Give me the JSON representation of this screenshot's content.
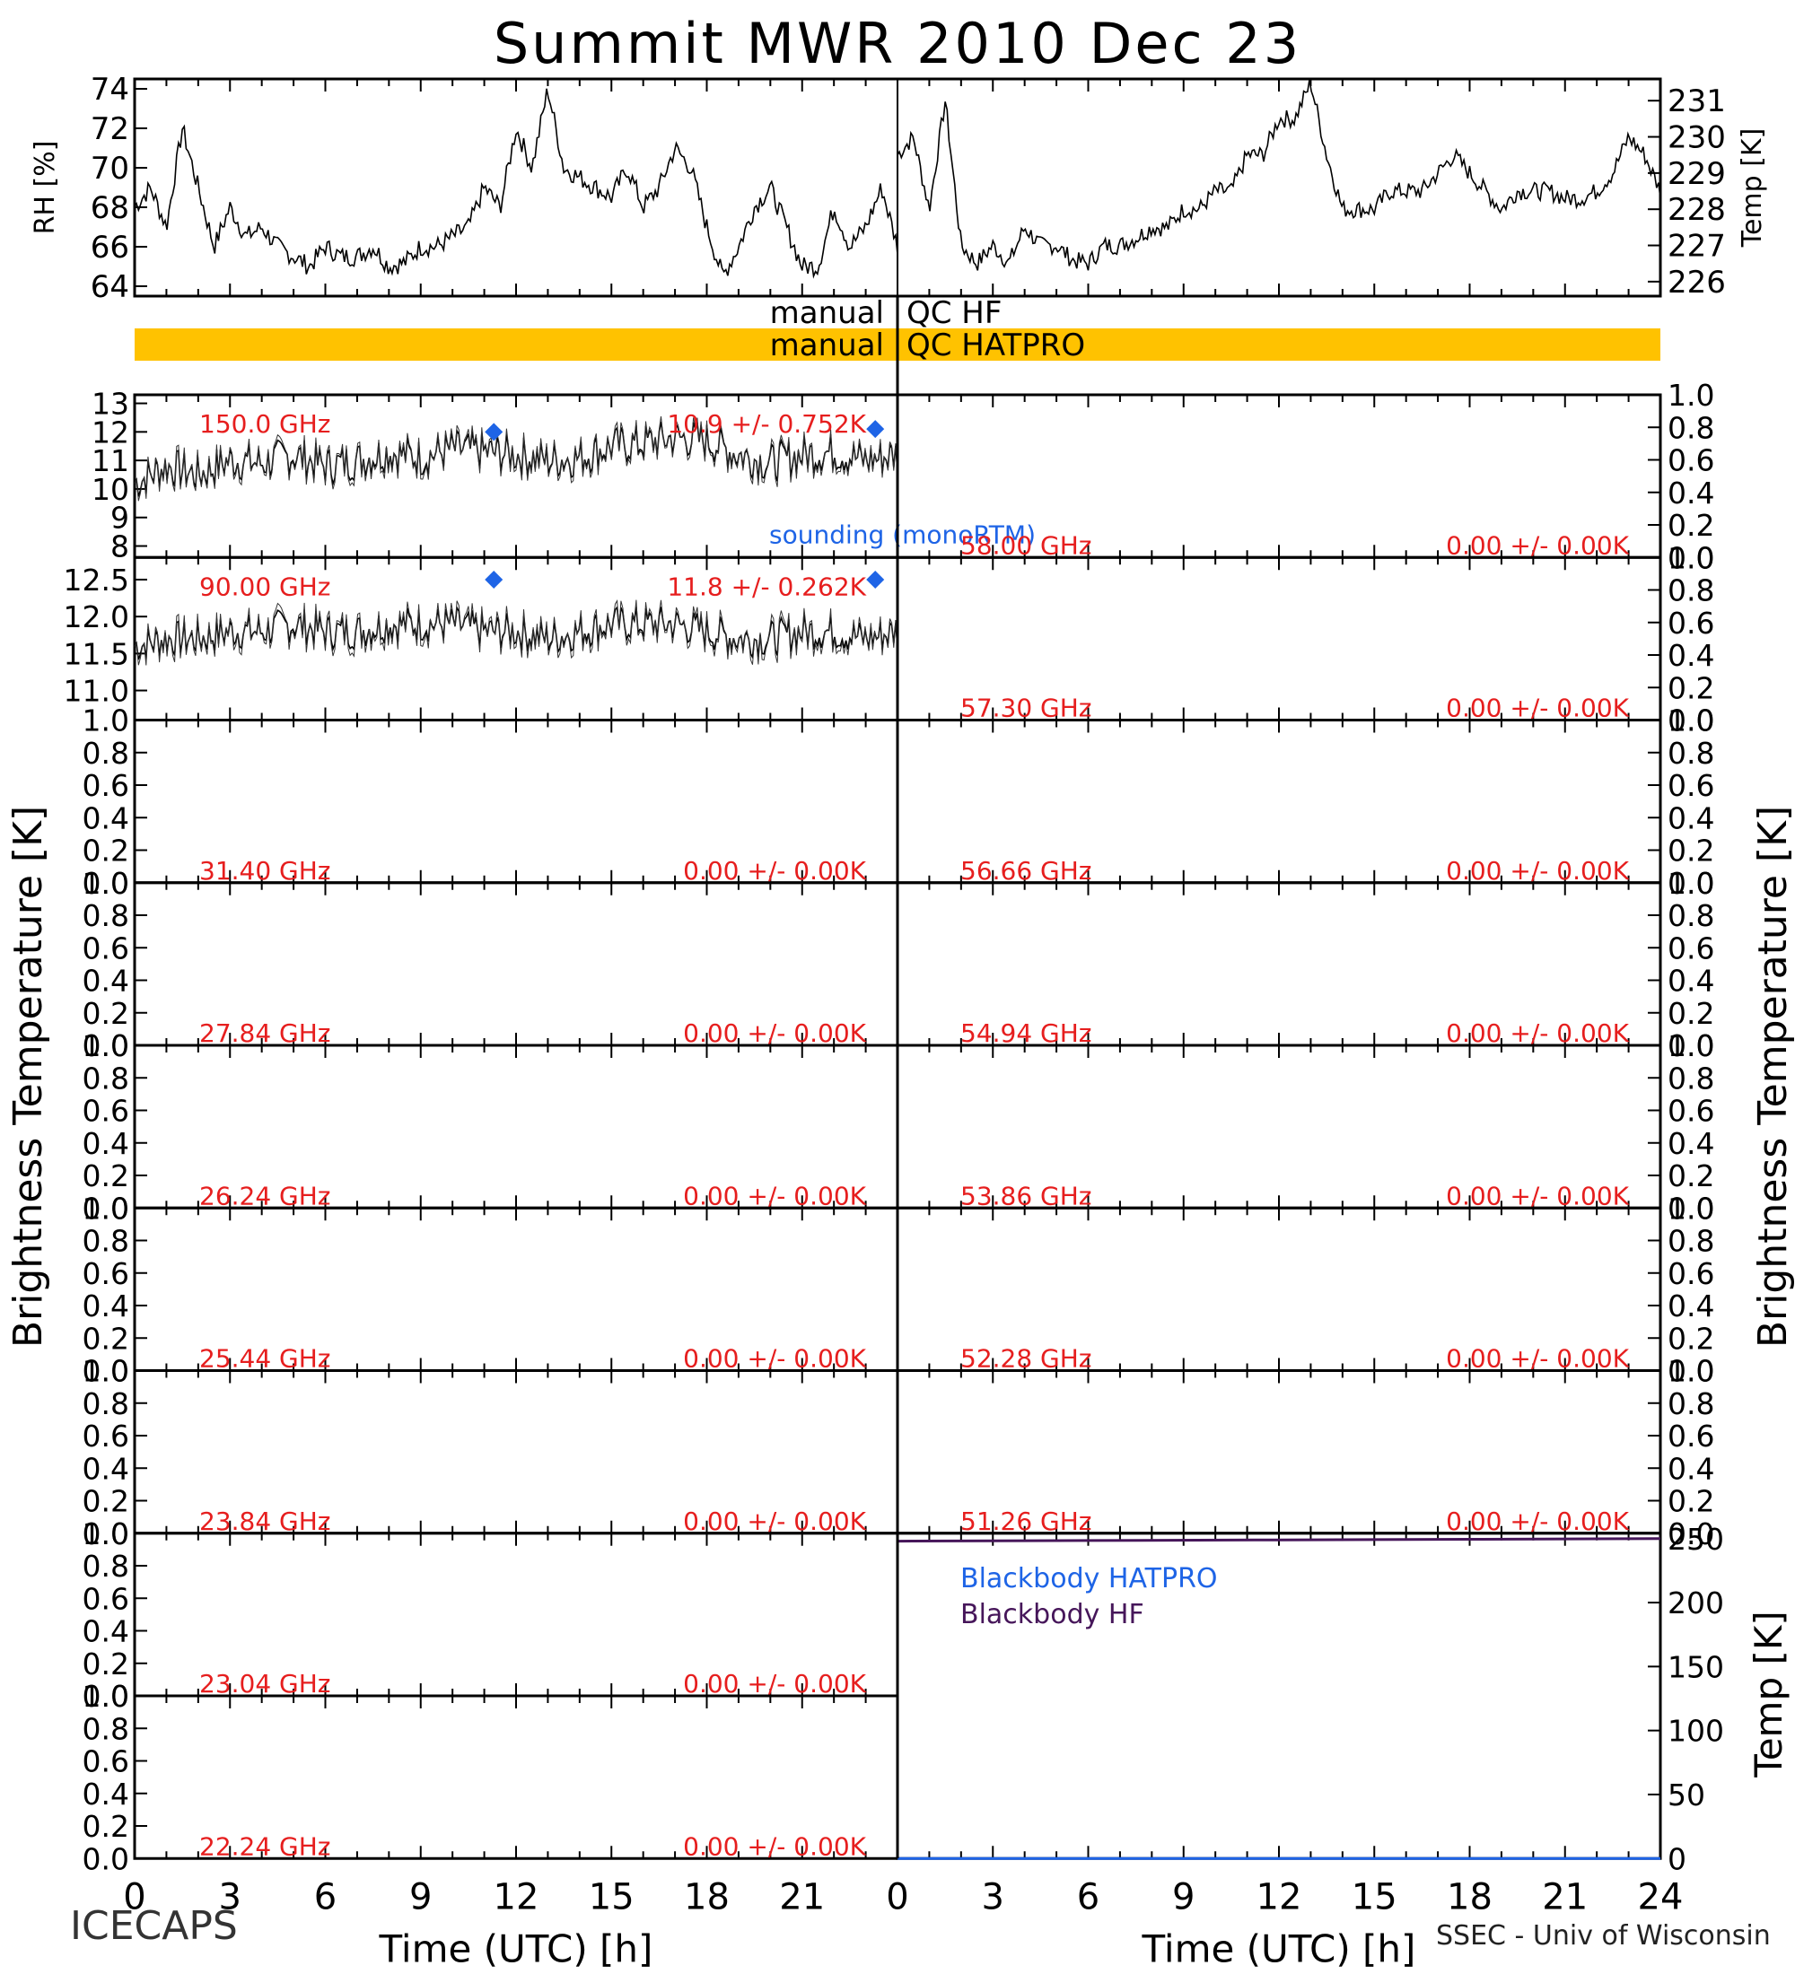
{
  "title": "Summit MWR 2010 Dec 23",
  "footer": {
    "left": "ICECAPS",
    "right": "SSEC - Univ of Wisconsin"
  },
  "colors": {
    "qc_bar": "#ffc200",
    "sounding": "#1e64e6",
    "label_red": "#e61e1e",
    "bb_hatpro": "#1e64e6",
    "bb_hf": "#46165a",
    "data": "#000000"
  },
  "chart_data": [
    {
      "type": "line",
      "id": "rh",
      "ylabel": "RH [%]",
      "ylim": [
        63.5,
        74.5
      ],
      "yticks": [
        "64",
        "66",
        "68",
        "70",
        "72",
        "74"
      ],
      "xlim": [
        0,
        24
      ],
      "x": [
        0,
        0.5,
        1,
        1.5,
        2,
        2.5,
        3,
        3.5,
        4,
        4.5,
        5,
        5.5,
        6,
        6.5,
        7,
        7.5,
        8,
        8.5,
        9,
        9.5,
        10,
        10.5,
        11,
        11.5,
        12,
        12.5,
        13,
        13.5,
        14,
        14.5,
        15,
        15.5,
        16,
        16.5,
        17,
        17.5,
        18,
        18.5,
        19,
        19.5,
        20,
        20.5,
        21,
        21.5,
        22,
        22.5,
        23,
        23.5,
        24
      ],
      "y": [
        68,
        69,
        67,
        72,
        69,
        66,
        68,
        66.5,
        67,
        66,
        65.5,
        65,
        66,
        65.5,
        65.5,
        66,
        65,
        65.2,
        66,
        66,
        66.5,
        67,
        69,
        68,
        72,
        70,
        74,
        70,
        69.5,
        69,
        68.5,
        70,
        68,
        69,
        71,
        70,
        67,
        64.5,
        66,
        68,
        69,
        67,
        65,
        65,
        68,
        66,
        67,
        69,
        66
      ]
    },
    {
      "type": "line",
      "id": "temp",
      "ylabel": "Temp [K]",
      "ylim": [
        225.6,
        231.6
      ],
      "yticks": [
        "226",
        "227",
        "228",
        "229",
        "230",
        "231"
      ],
      "xlim": [
        0,
        24
      ],
      "x": [
        0,
        0.5,
        1,
        1.5,
        2,
        2.5,
        3,
        3.5,
        4,
        4.5,
        5,
        5.5,
        6,
        6.5,
        7,
        7.5,
        8,
        8.5,
        9,
        9.5,
        10,
        10.5,
        11,
        11.5,
        12,
        12.5,
        13,
        13.5,
        14,
        14.5,
        15,
        15.5,
        16,
        16.5,
        17,
        17.5,
        18,
        18.5,
        19,
        19.5,
        20,
        20.5,
        21,
        21.5,
        22,
        22.5,
        23,
        23.5,
        24
      ],
      "y": [
        229.5,
        230,
        228,
        231,
        227,
        226.5,
        227,
        226.5,
        227.5,
        227,
        227,
        226.6,
        226.5,
        227,
        227,
        227.2,
        227.5,
        227.5,
        228,
        228,
        228.5,
        228.5,
        229.5,
        229.5,
        230.5,
        230.5,
        231.5,
        229.5,
        228,
        228,
        228,
        228.5,
        228.5,
        228.5,
        229,
        229.5,
        229,
        228.5,
        228,
        228.5,
        228.5,
        228.5,
        228.3,
        228.3,
        228.5,
        229,
        230,
        229.5,
        228.5
      ]
    },
    {
      "type": "line",
      "id": "tb_150",
      "freq_label": "150.0 GHz",
      "stat_label": "10.9 +/- 0.752K",
      "ylim": [
        7.6,
        13.3
      ],
      "yticks": [
        "8",
        "9",
        "10",
        "11",
        "12",
        "13"
      ],
      "xlim": [
        0,
        24
      ],
      "x": [
        0,
        1,
        2,
        3,
        4,
        5,
        6,
        7,
        8,
        9,
        10,
        11,
        12,
        13,
        14,
        15,
        16,
        17,
        18,
        19,
        20,
        21,
        22,
        23,
        24
      ],
      "y": [
        10.2,
        10.8,
        10.5,
        11.0,
        10.9,
        11.2,
        10.8,
        11.0,
        11.3,
        11.1,
        11.4,
        11.3,
        11.2,
        11.0,
        11.1,
        11.5,
        11.6,
        11.8,
        11.7,
        11.2,
        10.9,
        11.2,
        11.3,
        11.0,
        11.2
      ],
      "sounding": {
        "label": "sounding (monoRTM)",
        "x": [
          11.3,
          23.3
        ],
        "y": [
          12.0,
          12.1
        ]
      }
    },
    {
      "type": "line",
      "id": "tb_90",
      "freq_label": "90.00 GHz",
      "stat_label": "11.8 +/- 0.262K",
      "ylim": [
        10.6,
        12.8
      ],
      "yticks": [
        "11.0",
        "11.5",
        "12.0",
        "12.5"
      ],
      "xlim": [
        0,
        24
      ],
      "x": [
        0,
        1,
        2,
        3,
        4,
        5,
        6,
        7,
        8,
        9,
        10,
        11,
        12,
        13,
        14,
        15,
        16,
        17,
        18,
        19,
        20,
        21,
        22,
        23,
        24
      ],
      "y": [
        11.6,
        11.7,
        11.7,
        11.8,
        11.8,
        11.9,
        11.8,
        11.8,
        11.9,
        11.9,
        11.9,
        11.8,
        11.8,
        11.7,
        11.8,
        11.9,
        11.9,
        11.9,
        11.8,
        11.7,
        11.7,
        11.8,
        11.8,
        11.7,
        11.8
      ],
      "sounding": {
        "x": [
          11.3,
          23.3
        ],
        "y": [
          12.5,
          12.5
        ]
      }
    },
    {
      "type": "line",
      "id": "tb_3140",
      "freq_label": "31.40 GHz",
      "stat_label": "0.00 +/- 0.00K",
      "ylabel": "Brightness Temperature [K]",
      "ylim": [
        0,
        1
      ],
      "yticks": [
        "0.0",
        "0.2",
        "0.4",
        "0.6",
        "0.8",
        "1.0"
      ],
      "series": []
    },
    {
      "type": "line",
      "id": "tb_2784",
      "freq_label": "27.84 GHz",
      "stat_label": "0.00 +/- 0.00K",
      "ylim": [
        0,
        1
      ],
      "yticks": [
        "0.0",
        "0.2",
        "0.4",
        "0.6",
        "0.8",
        "1.0"
      ],
      "series": []
    },
    {
      "type": "line",
      "id": "tb_2624",
      "freq_label": "26.24 GHz",
      "stat_label": "0.00 +/- 0.00K",
      "ylim": [
        0,
        1
      ],
      "yticks": [
        "0.0",
        "0.2",
        "0.4",
        "0.6",
        "0.8",
        "1.0"
      ],
      "series": []
    },
    {
      "type": "line",
      "id": "tb_2544",
      "freq_label": "25.44 GHz",
      "stat_label": "0.00 +/- 0.00K",
      "ylim": [
        0,
        1
      ],
      "yticks": [
        "0.0",
        "0.2",
        "0.4",
        "0.6",
        "0.8",
        "1.0"
      ],
      "series": []
    },
    {
      "type": "line",
      "id": "tb_2384",
      "freq_label": "23.84 GHz",
      "stat_label": "0.00 +/- 0.00K",
      "ylim": [
        0,
        1
      ],
      "yticks": [
        "0.0",
        "0.2",
        "0.4",
        "0.6",
        "0.8",
        "1.0"
      ],
      "series": []
    },
    {
      "type": "line",
      "id": "tb_2304",
      "freq_label": "23.04 GHz",
      "stat_label": "0.00 +/- 0.00K",
      "ylim": [
        0,
        1
      ],
      "yticks": [
        "0.0",
        "0.2",
        "0.4",
        "0.6",
        "0.8",
        "1.0"
      ],
      "series": []
    },
    {
      "type": "line",
      "id": "tb_2224",
      "freq_label": "22.24 GHz",
      "stat_label": "0.00 +/- 0.00K",
      "ylim": [
        0,
        1
      ],
      "yticks": [
        "0.0",
        "0.2",
        "0.4",
        "0.6",
        "0.8",
        "1.0"
      ],
      "xlabel": "Time (UTC) [h]",
      "xticks": [
        "0",
        "3",
        "6",
        "9",
        "12",
        "15",
        "18",
        "21"
      ],
      "series": []
    },
    {
      "type": "line",
      "id": "tb_5800",
      "freq_label": "58.00 GHz",
      "stat_label": "0.00 +/- 0.00K",
      "ylim": [
        0,
        1
      ],
      "yticks": [
        "0.0",
        "0.2",
        "0.4",
        "0.6",
        "0.8",
        "1.0"
      ],
      "series": []
    },
    {
      "type": "line",
      "id": "tb_5730",
      "freq_label": "57.30 GHz",
      "stat_label": "0.00 +/- 0.00K",
      "ylim": [
        0,
        1
      ],
      "yticks": [
        "0.0",
        "0.2",
        "0.4",
        "0.6",
        "0.8",
        "1.0"
      ],
      "series": []
    },
    {
      "type": "line",
      "id": "tb_5666",
      "freq_label": "56.66 GHz",
      "stat_label": "0.00 +/- 0.00K",
      "ylim": [
        0,
        1
      ],
      "yticks": [
        "0.0",
        "0.2",
        "0.4",
        "0.6",
        "0.8",
        "1.0"
      ],
      "ylabel": "Brightness Temperature [K]",
      "series": []
    },
    {
      "type": "line",
      "id": "tb_5494",
      "freq_label": "54.94 GHz",
      "stat_label": "0.00 +/- 0.00K",
      "ylim": [
        0,
        1
      ],
      "yticks": [
        "0.0",
        "0.2",
        "0.4",
        "0.6",
        "0.8",
        "1.0"
      ],
      "series": []
    },
    {
      "type": "line",
      "id": "tb_5386",
      "freq_label": "53.86 GHz",
      "stat_label": "0.00 +/- 0.00K",
      "ylim": [
        0,
        1
      ],
      "yticks": [
        "0.0",
        "0.2",
        "0.4",
        "0.6",
        "0.8",
        "1.0"
      ],
      "series": []
    },
    {
      "type": "line",
      "id": "tb_5228",
      "freq_label": "52.28 GHz",
      "stat_label": "0.00 +/- 0.00K",
      "ylim": [
        0,
        1
      ],
      "yticks": [
        "0.0",
        "0.2",
        "0.4",
        "0.6",
        "0.8",
        "1.0"
      ],
      "series": []
    },
    {
      "type": "line",
      "id": "tb_5126",
      "freq_label": "51.26 GHz",
      "stat_label": "0.00 +/- 0.00K",
      "ylim": [
        0,
        1
      ],
      "yticks": [
        "0.0",
        "0.2",
        "0.4",
        "0.6",
        "0.8",
        "1.0"
      ],
      "series": []
    },
    {
      "type": "line",
      "id": "blackbody",
      "ylabel": "Temp [K]",
      "ylim": [
        0,
        250
      ],
      "yticks": [
        "0",
        "50",
        "100",
        "150",
        "200",
        "250"
      ],
      "xlabel": "Time (UTC) [h]",
      "xticks": [
        "0",
        "3",
        "6",
        "9",
        "12",
        "15",
        "18",
        "21",
        "24"
      ],
      "series": [
        {
          "name": "Blackbody HATPRO",
          "x": [
            0,
            24
          ],
          "y": [
            0,
            0
          ]
        },
        {
          "name": "Blackbody HF",
          "x": [
            0,
            6,
            12,
            18,
            24
          ],
          "y": [
            248,
            248.5,
            249,
            249.5,
            250
          ]
        }
      ]
    }
  ],
  "qc": {
    "hf_prefix": "manual",
    "hf_label": "QC HF",
    "hatpro_prefix": "manual",
    "hatpro_label": "QC HATPRO"
  }
}
